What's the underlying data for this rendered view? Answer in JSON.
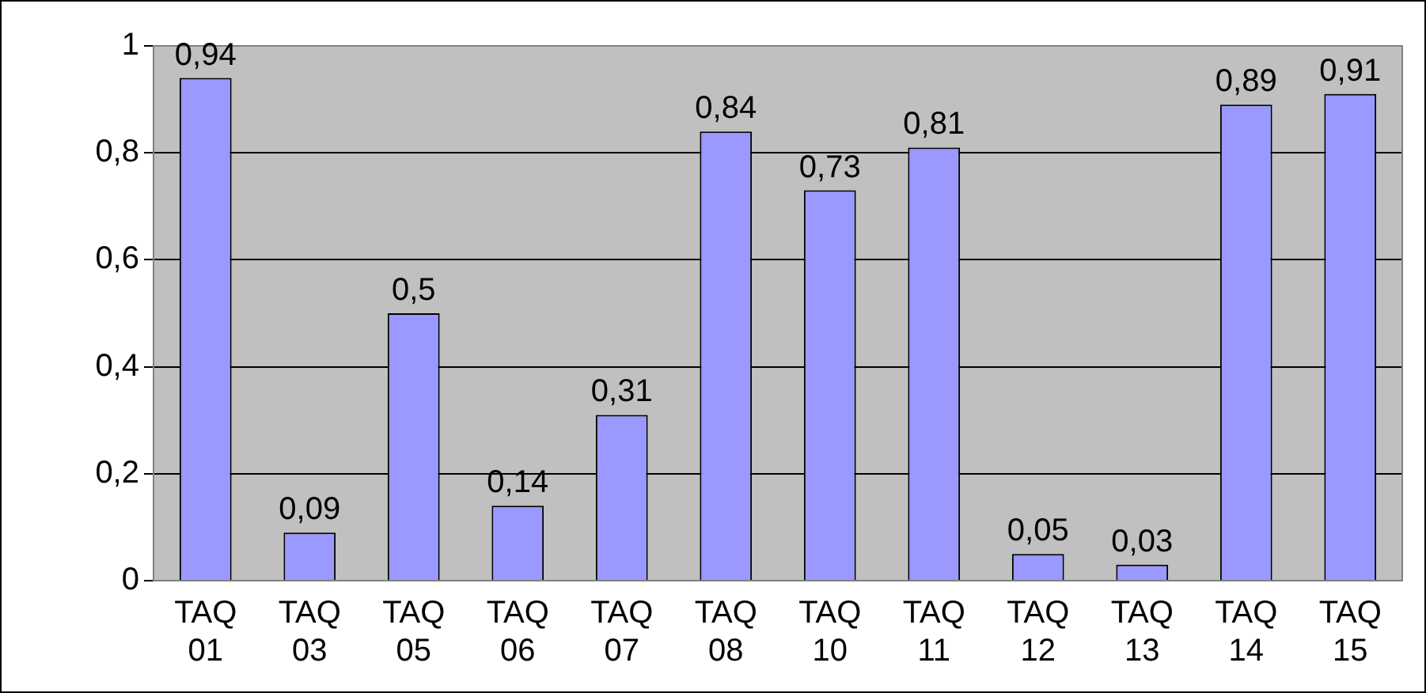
{
  "chart_data": {
    "type": "bar",
    "categories": [
      "TAQ 01",
      "TAQ 03",
      "TAQ 05",
      "TAQ 06",
      "TAQ 07",
      "TAQ 08",
      "TAQ 10",
      "TAQ 11",
      "TAQ 12",
      "TAQ 13",
      "TAQ 14",
      "TAQ 15"
    ],
    "values": [
      0.94,
      0.09,
      0.5,
      0.14,
      0.31,
      0.84,
      0.73,
      0.81,
      0.05,
      0.03,
      0.89,
      0.91
    ],
    "value_labels": [
      "0,94",
      "0,09",
      "0,5",
      "0,14",
      "0,31",
      "0,84",
      "0,73",
      "0,81",
      "0,05",
      "0,03",
      "0,89",
      "0,91"
    ],
    "color": "#9999ff",
    "ylim": [
      0,
      1
    ],
    "yticks": [
      0,
      {
        "value": 0.2,
        "label": "0,2"
      },
      {
        "value": 0.4,
        "label": "0,4"
      },
      {
        "value": 0.6,
        "label": "0,6"
      },
      {
        "value": 0.8,
        "label": "0,8"
      },
      1
    ],
    "grid": "y",
    "legend": false
  }
}
